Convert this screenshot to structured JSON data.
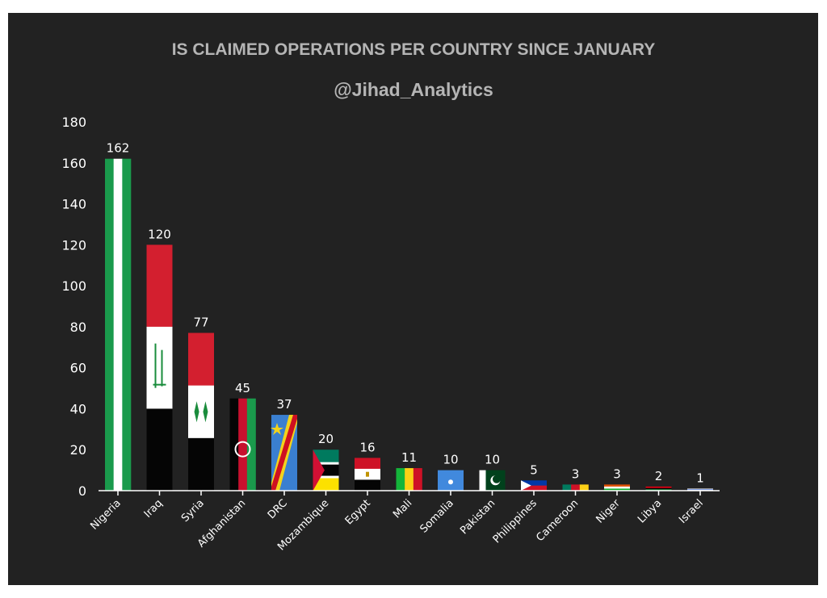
{
  "chart_data": {
    "type": "bar",
    "title": "IS CLAIMED OPERATIONS PER COUNTRY SINCE JANUARY",
    "subtitle": "@Jihad_Analytics",
    "categories": [
      "Nigeria",
      "Iraq",
      "Syria",
      "Afghanistan",
      "DRC",
      "Mozambique",
      "Egypt",
      "Mali",
      "Somalia",
      "Pakistan",
      "Philippines",
      "Cameroon",
      "Niger",
      "Libya",
      "Israel"
    ],
    "values": [
      162,
      120,
      77,
      45,
      37,
      20,
      16,
      11,
      10,
      10,
      5,
      3,
      3,
      2,
      1
    ],
    "value_labels": [
      "162",
      "120",
      "77",
      "45",
      "37",
      "20",
      "16",
      "11",
      "10",
      "10",
      "5",
      "3",
      "3",
      "2",
      "1"
    ],
    "ylim": [
      0,
      180
    ],
    "yticks": [
      "0",
      "20",
      "40",
      "60",
      "80",
      "100",
      "120",
      "140",
      "160",
      "180"
    ],
    "grid": false,
    "bar_style": "national flags",
    "colors": {
      "background": "#222222",
      "page": "#ffffff",
      "title": "#b5b5b5",
      "text": "#ffffff"
    }
  }
}
